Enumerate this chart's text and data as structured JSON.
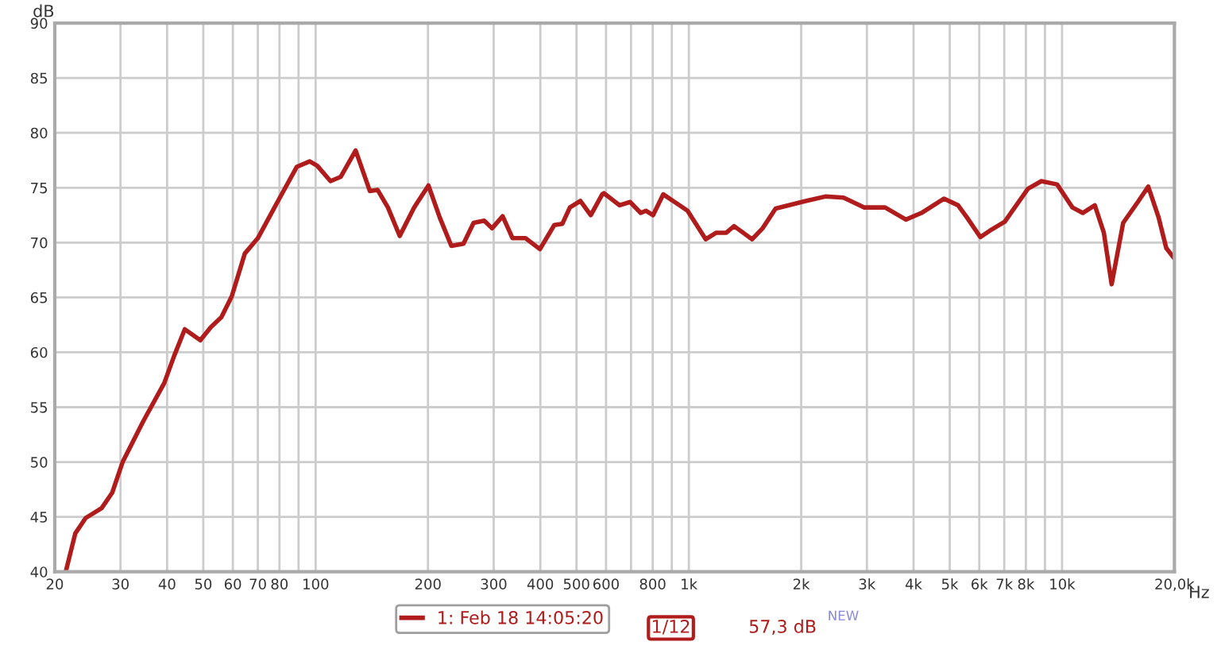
{
  "chart_data": {
    "type": "line",
    "xlabel": "Hz",
    "ylabel": "dB",
    "log": "x",
    "grid": true,
    "legend": "bottom",
    "marker": "none",
    "line_style": "solid",
    "xlim": [
      20,
      20000
    ],
    "ylim": [
      40,
      90
    ],
    "xticks": [
      20,
      30,
      40,
      50,
      60,
      70,
      80,
      {
        "value": 90,
        "label": null
      },
      100,
      200,
      300,
      400,
      500,
      600,
      {
        "value": 700,
        "label": null
      },
      800,
      {
        "value": 900,
        "label": null
      },
      {
        "value": 1000,
        "label": "1k"
      },
      {
        "value": 2000,
        "label": "2k"
      },
      {
        "value": 3000,
        "label": "3k"
      },
      {
        "value": 4000,
        "label": "4k"
      },
      {
        "value": 5000,
        "label": "5k"
      },
      {
        "value": 6000,
        "label": "6k"
      },
      {
        "value": 7000,
        "label": "7k"
      },
      {
        "value": 8000,
        "label": "8k"
      },
      {
        "value": 9000,
        "label": null
      },
      {
        "value": 10000,
        "label": "10k"
      },
      {
        "value": 20000,
        "label": "20,0k"
      }
    ],
    "yticks": [
      40,
      45,
      50,
      55,
      60,
      65,
      70,
      75,
      80,
      85,
      90
    ],
    "annotations": [
      "1/12",
      "57,3 dB",
      "NEW"
    ],
    "series": [
      {
        "name": "1: Feb 18 14:05:20",
        "color": "#b01c1c",
        "x": [
          21.4,
          22.7,
          24.2,
          26.7,
          28.5,
          30.4,
          34.5,
          39.3,
          41.8,
          44.6,
          49.1,
          52.4,
          55.9,
          59.6,
          64.6,
          70.0,
          79.6,
          89.0,
          96.4,
          101,
          109.6,
          116.8,
          128,
          139.7,
          146.6,
          156.2,
          168,
          183.6,
          200.6,
          215,
          231,
          249,
          265,
          283,
          297,
          317,
          337,
          365,
          399,
          436,
          458,
          480,
          512,
          546,
          586,
          592,
          652,
          696,
          743,
          768,
          802,
          854,
          916,
          992,
          1110,
          1184,
          1260,
          1322,
          1478,
          1576,
          1708,
          2006,
          2320,
          2596,
          2952,
          3356,
          3816,
          4200,
          4824,
          5264,
          5560,
          6040,
          6480,
          7020,
          8100,
          8800,
          9700,
          10660,
          11360,
          12240,
          12940,
          13580,
          14580,
          15960,
          17020,
          18140,
          19020,
          19840
        ],
        "values": [
          40.0,
          43.5,
          44.9,
          45.8,
          47.2,
          50.0,
          53.7,
          57.2,
          59.7,
          62.1,
          61.1,
          62.3,
          63.2,
          65.1,
          69.0,
          70.4,
          73.9,
          76.9,
          77.4,
          77.0,
          75.6,
          76.0,
          78.4,
          74.7,
          74.8,
          73.2,
          70.6,
          73.2,
          75.2,
          72.3,
          69.7,
          69.9,
          71.8,
          72.0,
          71.3,
          72.4,
          70.4,
          70.4,
          69.4,
          71.6,
          71.7,
          73.2,
          73.8,
          72.5,
          74.4,
          74.5,
          73.4,
          73.7,
          72.7,
          72.9,
          72.5,
          74.4,
          73.7,
          72.9,
          70.3,
          70.9,
          70.9,
          71.5,
          70.3,
          71.3,
          73.1,
          73.7,
          74.2,
          74.1,
          73.2,
          73.2,
          72.1,
          72.7,
          74.0,
          73.4,
          72.3,
          70.5,
          71.2,
          71.9,
          74.9,
          75.6,
          75.3,
          73.2,
          72.7,
          73.4,
          70.9,
          66.2,
          71.8,
          73.7,
          75.1,
          72.3,
          69.5,
          68.7
        ]
      }
    ]
  }
}
